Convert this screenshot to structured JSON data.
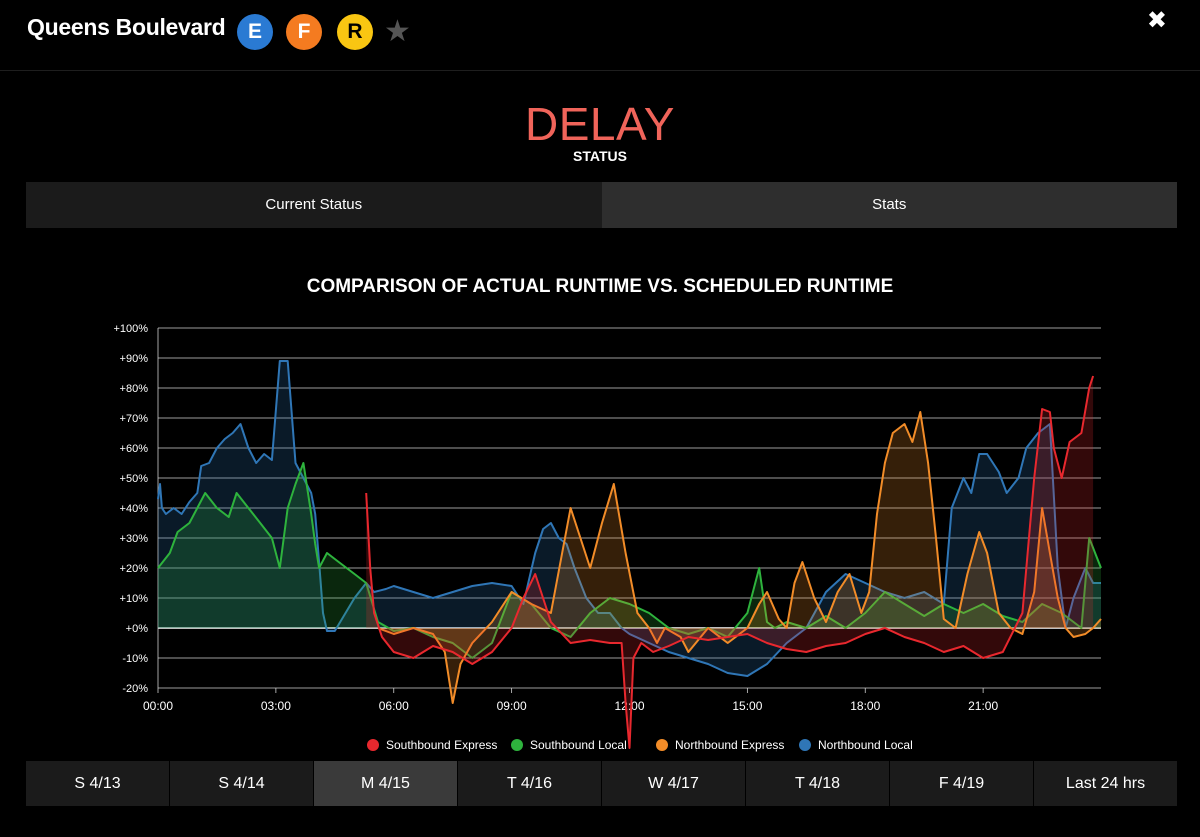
{
  "header": {
    "line_name": "Queens Boulevard",
    "routes": [
      {
        "label": "E",
        "color": "#2a7ad3"
      },
      {
        "label": "F",
        "color": "#f47b20"
      },
      {
        "label": "R",
        "color": "#f9c612"
      }
    ],
    "star_icon": "star-icon",
    "close_icon": "close-icon",
    "close_glyph": "✖"
  },
  "status": {
    "value": "DELAY",
    "label": "STATUS",
    "color": "#f0645a"
  },
  "tabs": [
    {
      "label": "Current Status",
      "active": false
    },
    {
      "label": "Stats",
      "active": true
    }
  ],
  "chart_data": {
    "type": "area",
    "title": "COMPARISON OF ACTUAL RUNTIME VS. SCHEDULED RUNTIME",
    "x_range": [
      0,
      24
    ],
    "x_ticks": [
      "00:00",
      "03:00",
      "06:00",
      "09:00",
      "12:00",
      "15:00",
      "18:00",
      "21:00"
    ],
    "ylim": [
      -20,
      100
    ],
    "y_ticks": [
      "+100%",
      "+90%",
      "+80%",
      "+70%",
      "+60%",
      "+50%",
      "+40%",
      "+30%",
      "+20%",
      "+10%",
      "+0%",
      "-10%",
      "-20%"
    ],
    "grid": true,
    "legend_position": "bottom",
    "series": [
      {
        "name": "Southbound Express",
        "color": "#e8282e",
        "x": [
          5.3,
          5.4,
          5.5,
          5.7,
          6.0,
          6.5,
          7.0,
          7.5,
          8.0,
          8.5,
          9.0,
          9.3,
          9.6,
          10.0,
          10.5,
          11.0,
          11.5,
          11.8,
          11.9,
          12.0,
          12.1,
          12.3,
          12.6,
          13.0,
          13.5,
          14.0,
          14.5,
          15.0,
          15.5,
          16.0,
          16.5,
          17.0,
          17.5,
          18.0,
          18.5,
          19.0,
          19.5,
          20.0,
          20.5,
          21.0,
          21.5,
          22.0,
          22.3,
          22.5,
          22.7,
          22.8,
          23.0,
          23.2,
          23.5,
          23.7,
          23.8
        ],
        "y": [
          45,
          20,
          5,
          -3,
          -8,
          -10,
          -6,
          -8,
          -12,
          -8,
          0,
          10,
          18,
          2,
          -5,
          -4,
          -5,
          -5,
          -25,
          -40,
          -10,
          -5,
          -8,
          -6,
          -3,
          -4,
          -3,
          -2,
          -5,
          -7,
          -8,
          -6,
          -5,
          -2,
          0,
          -3,
          -5,
          -8,
          -6,
          -10,
          -8,
          5,
          50,
          73,
          72,
          60,
          50,
          62,
          65,
          80,
          84
        ]
      },
      {
        "name": "Southbound Local",
        "color": "#2eb33d",
        "x": [
          0,
          0.3,
          0.5,
          0.8,
          1.0,
          1.2,
          1.5,
          1.8,
          2.0,
          2.3,
          2.6,
          2.9,
          3.1,
          3.3,
          3.5,
          3.7,
          3.9,
          4.0,
          4.1,
          4.3,
          4.6,
          5.0,
          5.3,
          5.6,
          6.0,
          6.5,
          7.0,
          7.5,
          8.0,
          8.5,
          9.0,
          9.5,
          10.0,
          10.5,
          11.0,
          11.5,
          12.0,
          12.5,
          13.0,
          13.5,
          14.0,
          14.5,
          15.0,
          15.3,
          15.5,
          15.7,
          16.0,
          16.5,
          17.0,
          17.5,
          18.0,
          18.5,
          19.0,
          19.5,
          20.0,
          20.5,
          21.0,
          21.5,
          22.0,
          22.5,
          23.0,
          23.5,
          23.7,
          24.0
        ],
        "y": [
          20,
          25,
          32,
          35,
          40,
          45,
          40,
          37,
          45,
          40,
          35,
          30,
          20,
          40,
          48,
          55,
          38,
          28,
          20,
          25,
          22,
          18,
          15,
          2,
          -1,
          0,
          -3,
          -5,
          -10,
          -5,
          12,
          8,
          0,
          -3,
          5,
          10,
          8,
          5,
          0,
          -2,
          0,
          -3,
          5,
          20,
          2,
          0,
          2,
          0,
          4,
          0,
          5,
          12,
          8,
          4,
          8,
          5,
          8,
          4,
          2,
          8,
          5,
          0,
          30,
          20
        ]
      },
      {
        "name": "Northbound Express",
        "color": "#f28c28",
        "x": [
          5.6,
          6.0,
          6.5,
          7.0,
          7.3,
          7.5,
          7.7,
          8.0,
          8.5,
          9.0,
          9.5,
          10.0,
          10.5,
          11.0,
          11.3,
          11.6,
          11.9,
          12.2,
          12.5,
          12.7,
          12.9,
          13.3,
          13.5,
          14.0,
          14.5,
          15.0,
          15.3,
          15.5,
          15.8,
          16.0,
          16.2,
          16.4,
          16.7,
          17.0,
          17.3,
          17.6,
          17.9,
          18.1,
          18.3,
          18.5,
          18.7,
          19.0,
          19.2,
          19.4,
          19.6,
          19.8,
          20.0,
          20.3,
          20.6,
          20.9,
          21.1,
          21.4,
          21.7,
          22.0,
          22.3,
          22.5,
          22.7,
          22.9,
          23.1,
          23.3,
          23.6,
          23.8,
          24.0
        ],
        "y": [
          0,
          -2,
          0,
          -2,
          -8,
          -25,
          -12,
          -5,
          2,
          12,
          8,
          5,
          40,
          20,
          35,
          48,
          25,
          5,
          0,
          -5,
          0,
          -3,
          -8,
          0,
          -5,
          0,
          8,
          12,
          3,
          0,
          15,
          22,
          10,
          2,
          12,
          18,
          5,
          12,
          38,
          55,
          65,
          68,
          62,
          72,
          55,
          30,
          3,
          0,
          18,
          32,
          25,
          5,
          0,
          -2,
          12,
          40,
          25,
          10,
          0,
          -3,
          -2,
          0,
          3
        ]
      },
      {
        "name": "Northbound Local",
        "color": "#2f76b6",
        "x": [
          0,
          0.05,
          0.1,
          0.2,
          0.4,
          0.6,
          0.8,
          1.0,
          1.1,
          1.3,
          1.5,
          1.7,
          1.9,
          2.1,
          2.3,
          2.5,
          2.7,
          2.9,
          3.1,
          3.3,
          3.5,
          3.7,
          3.9,
          4.0,
          4.1,
          4.2,
          4.3,
          4.5,
          5.0,
          5.3,
          5.5,
          5.8,
          6.0,
          6.5,
          7.0,
          7.5,
          8.0,
          8.5,
          9.0,
          9.3,
          9.6,
          9.8,
          10.0,
          10.2,
          10.4,
          10.6,
          10.9,
          11.2,
          11.5,
          11.8,
          12.0,
          12.5,
          13.0,
          13.5,
          14.0,
          14.5,
          15.0,
          15.5,
          16.0,
          16.5,
          17.0,
          17.5,
          18.0,
          18.5,
          19.0,
          19.5,
          20.0,
          20.2,
          20.5,
          20.7,
          20.9,
          21.1,
          21.4,
          21.6,
          21.9,
          22.1,
          22.4,
          22.7,
          22.9,
          23.1,
          23.3,
          23.6,
          23.8,
          24.0
        ],
        "y": [
          43,
          48,
          40,
          38,
          40,
          38,
          42,
          45,
          54,
          55,
          60,
          63,
          65,
          68,
          60,
          55,
          58,
          56,
          89,
          89,
          55,
          50,
          45,
          38,
          22,
          5,
          -1,
          -1,
          10,
          15,
          12,
          13,
          14,
          12,
          10,
          12,
          14,
          15,
          14,
          8,
          25,
          33,
          35,
          30,
          28,
          20,
          10,
          5,
          5,
          0,
          -2,
          -5,
          -8,
          -10,
          -12,
          -15,
          -16,
          -12,
          -5,
          0,
          12,
          18,
          15,
          12,
          10,
          12,
          8,
          40,
          50,
          45,
          58,
          58,
          52,
          45,
          50,
          60,
          65,
          68,
          20,
          0,
          10,
          20,
          15,
          15
        ]
      }
    ]
  },
  "date_tabs": [
    {
      "label": "S 4/13",
      "active": false
    },
    {
      "label": "S 4/14",
      "active": false
    },
    {
      "label": "M 4/15",
      "active": true
    },
    {
      "label": "T 4/16",
      "active": false
    },
    {
      "label": "W 4/17",
      "active": false
    },
    {
      "label": "T 4/18",
      "active": false
    },
    {
      "label": "F 4/19",
      "active": false
    },
    {
      "label": "Last 24 hrs",
      "active": false
    }
  ]
}
